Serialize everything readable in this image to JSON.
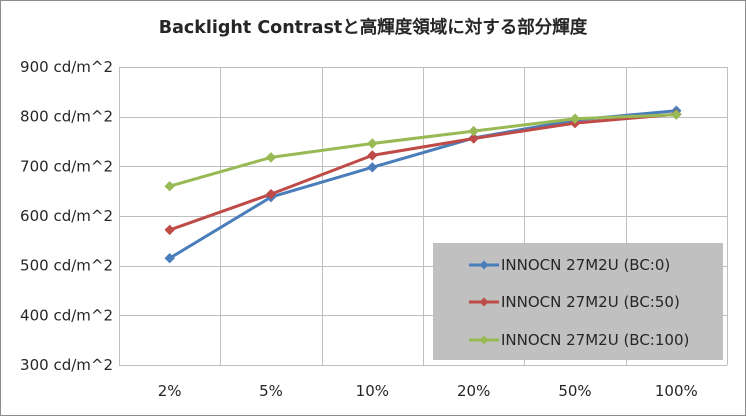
{
  "chart_data": {
    "type": "line",
    "title": "Backlight Contrastと高輝度領域に対する部分輝度",
    "xlabel": "",
    "ylabel": "",
    "categories": [
      "2%",
      "5%",
      "10%",
      "20%",
      "50%",
      "100%"
    ],
    "y_ticks": [
      "300 cd/m^2",
      "400 cd/m^2",
      "500 cd/m^2",
      "600 cd/m^2",
      "700 cd/m^2",
      "800 cd/m^2",
      "900 cd/m^2"
    ],
    "y_tick_values": [
      300,
      400,
      500,
      600,
      700,
      800,
      900
    ],
    "ylim": [
      300,
      900
    ],
    "grid": true,
    "legend_position": "bottom-right",
    "legend_background": "#c0c0c0",
    "series": [
      {
        "name": "INNOCN 27M2U (BC:0)",
        "color": "#4a7ebb",
        "values": [
          515,
          638,
          698,
          757,
          793,
          812
        ]
      },
      {
        "name": "INNOCN 27M2U (BC:50)",
        "color": "#be4b48",
        "values": [
          572,
          644,
          722,
          756,
          787,
          805
        ]
      },
      {
        "name": "INNOCN 27M2U (BC:100)",
        "color": "#98b954",
        "values": [
          660,
          718,
          746,
          771,
          796,
          804
        ]
      }
    ]
  }
}
